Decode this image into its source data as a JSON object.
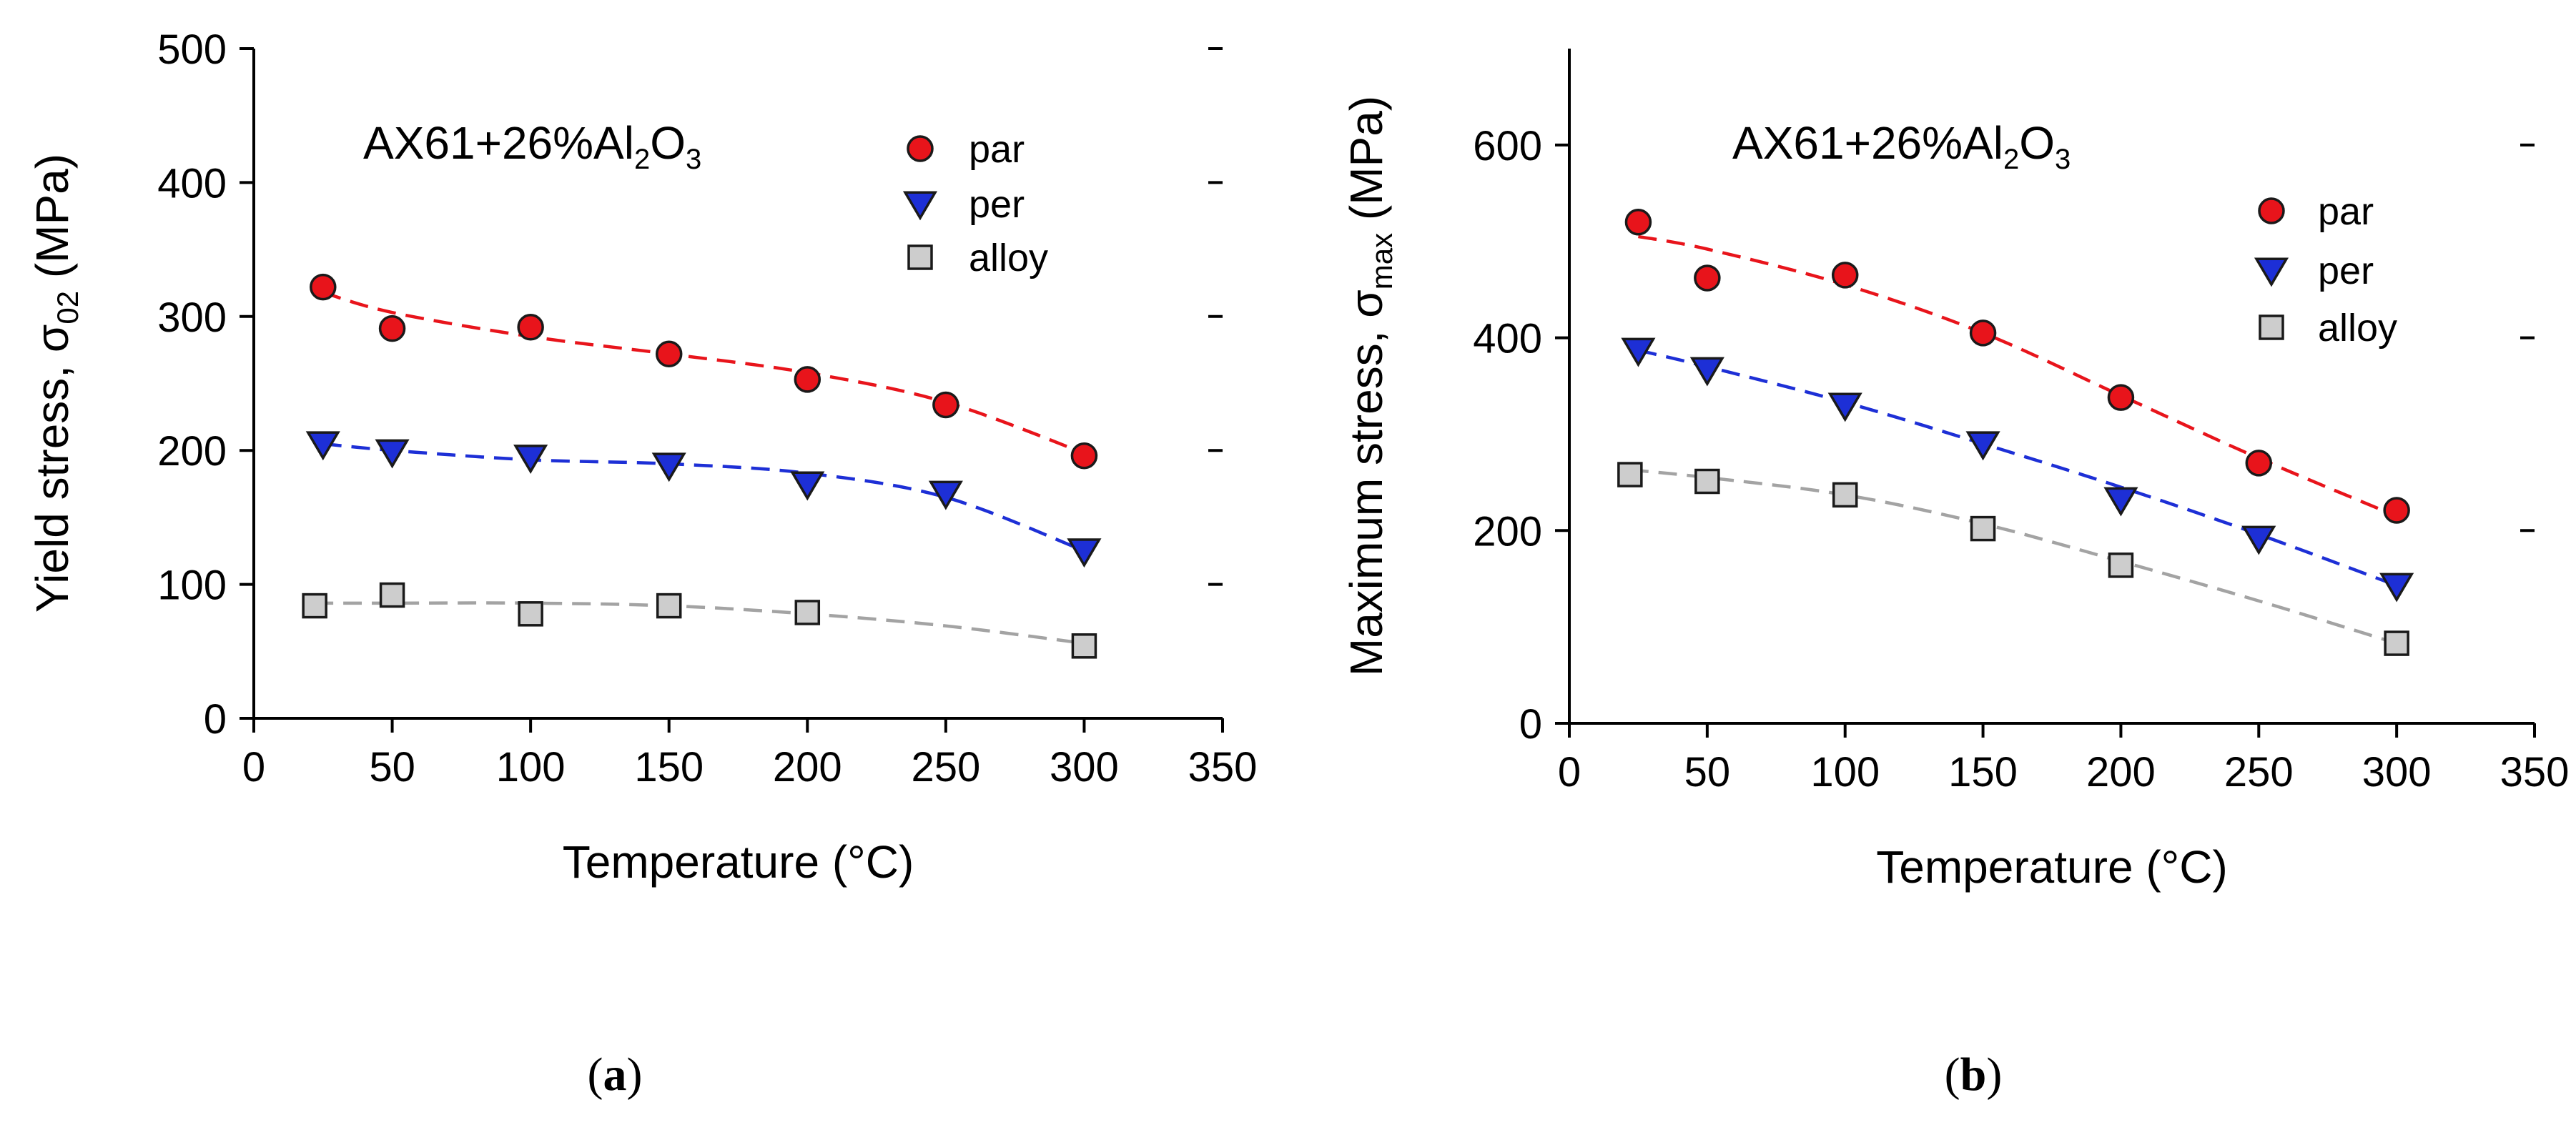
{
  "chart_data": [
    {
      "type": "scatter",
      "panel": "(a)",
      "panel_letter": "a",
      "annotation": {
        "base": "AX61+26%Al",
        "sub1": "2",
        "mid": "O",
        "sub2": "3"
      },
      "xlabel": "Temperature (°C)",
      "ylabel": {
        "main": "Yield stress, σ",
        "sub": "02",
        "unit": " (MPa)"
      },
      "xlim": [
        0,
        350
      ],
      "ylim": [
        0,
        500
      ],
      "xticks": [
        0,
        50,
        100,
        150,
        200,
        250,
        300,
        350
      ],
      "yticks": [
        0,
        100,
        200,
        300,
        400,
        500
      ],
      "grid": false,
      "legend_position": "top-right",
      "series": [
        {
          "name": "par",
          "marker": "circle",
          "color": "#e8141b",
          "fit_color": "#e8141b",
          "x": [
            25,
            50,
            100,
            150,
            200,
            250,
            300
          ],
          "y": [
            322,
            291,
            292,
            272,
            253,
            234,
            196
          ],
          "fit": [
            [
              25,
              318
            ],
            [
              50,
              303
            ],
            [
              100,
              285
            ],
            [
              150,
              272
            ],
            [
              200,
              258
            ],
            [
              250,
              236
            ],
            [
              300,
              198
            ]
          ]
        },
        {
          "name": "per",
          "marker": "triangle-down",
          "color": "#1d2fd6",
          "fit_color": "#1d2fd6",
          "x": [
            25,
            50,
            100,
            150,
            200,
            250,
            300
          ],
          "y": [
            205,
            199,
            195,
            189,
            175,
            168,
            125
          ],
          "fit": [
            [
              25,
              205
            ],
            [
              50,
              200
            ],
            [
              100,
              193
            ],
            [
              150,
              190
            ],
            [
              200,
              183
            ],
            [
              250,
              165
            ],
            [
              300,
              125
            ]
          ]
        },
        {
          "name": "alloy",
          "marker": "square",
          "color": "#cdcdcd",
          "fit_color": "#a3a3a3",
          "x": [
            22,
            50,
            100,
            150,
            200,
            300
          ],
          "y": [
            84,
            92,
            78,
            84,
            79,
            54
          ],
          "fit": [
            [
              22,
              86
            ],
            [
              50,
              86
            ],
            [
              100,
              86
            ],
            [
              150,
              84
            ],
            [
              200,
              78
            ],
            [
              250,
              69
            ],
            [
              300,
              56
            ]
          ]
        }
      ]
    },
    {
      "type": "scatter",
      "panel": "(b)",
      "panel_letter": "b",
      "annotation": {
        "base": "AX61+26%Al",
        "sub1": "2",
        "mid": "O",
        "sub2": "3"
      },
      "xlabel": "Temperature (°C)",
      "ylabel": {
        "main": "Maximum stress, σ",
        "sub": "max",
        "unit": " (MPa)"
      },
      "xlim": [
        0,
        350
      ],
      "ylim": [
        0,
        700
      ],
      "xticks": [
        0,
        50,
        100,
        150,
        200,
        250,
        300,
        350
      ],
      "yticks": [
        0,
        200,
        400,
        600
      ],
      "grid": false,
      "legend_position": "top-right",
      "series": [
        {
          "name": "par",
          "marker": "circle",
          "color": "#e8141b",
          "fit_color": "#e8141b",
          "x": [
            25,
            50,
            100,
            150,
            200,
            250,
            300
          ],
          "y": [
            520,
            462,
            465,
            405,
            338,
            270,
            221
          ],
          "fit": [
            [
              25,
              505
            ],
            [
              50,
              492
            ],
            [
              100,
              455
            ],
            [
              150,
              405
            ],
            [
              200,
              340
            ],
            [
              250,
              275
            ],
            [
              300,
              215
            ]
          ]
        },
        {
          "name": "per",
          "marker": "triangle-down",
          "color": "#1d2fd6",
          "fit_color": "#1d2fd6",
          "x": [
            25,
            50,
            100,
            150,
            200,
            250,
            300
          ],
          "y": [
            387,
            367,
            330,
            290,
            232,
            192,
            143
          ],
          "fit": [
            [
              25,
              387
            ],
            [
              50,
              370
            ],
            [
              100,
              333
            ],
            [
              150,
              290
            ],
            [
              200,
              245
            ],
            [
              250,
              196
            ],
            [
              300,
              143
            ]
          ]
        },
        {
          "name": "alloy",
          "marker": "square",
          "color": "#cdcdcd",
          "fit_color": "#a3a3a3",
          "x": [
            22,
            50,
            100,
            150,
            200,
            300
          ],
          "y": [
            258,
            251,
            237,
            202,
            164,
            83
          ],
          "fit": [
            [
              22,
              263
            ],
            [
              50,
              255
            ],
            [
              100,
              237
            ],
            [
              150,
              207
            ],
            [
              200,
              168
            ],
            [
              250,
              127
            ],
            [
              300,
              83
            ]
          ]
        }
      ]
    }
  ]
}
